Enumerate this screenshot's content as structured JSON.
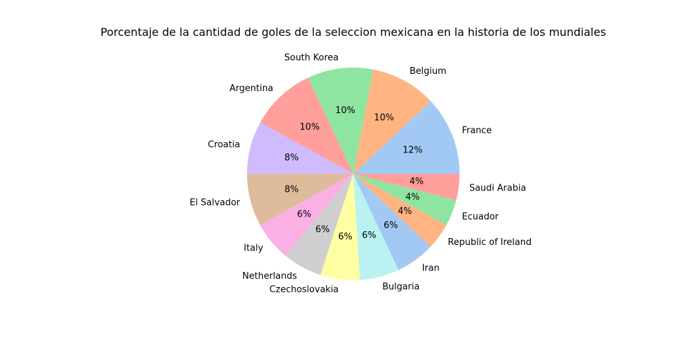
{
  "chart_data": {
    "type": "pie",
    "title": "Porcentaje de la cantidad de goles de la seleccion mexicana en la historia de los mundiales",
    "categories": [
      "France",
      "Belgium",
      "South Korea",
      "Argentina",
      "Croatia",
      "El Salvador",
      "Italy",
      "Netherlands",
      "Czechoslovakia",
      "Bulgaria",
      "Iran",
      "Republic of Ireland",
      "Ecuador",
      "Saudi Arabia"
    ],
    "values": [
      6,
      5,
      5,
      5,
      4,
      4,
      3,
      3,
      3,
      3,
      3,
      2,
      2,
      2
    ],
    "percent_labels": [
      "12%",
      "10%",
      "10%",
      "10%",
      "8%",
      "8%",
      "6%",
      "6%",
      "6%",
      "6%",
      "6%",
      "4%",
      "4%",
      "4%"
    ],
    "colors": [
      "#a1c9f4",
      "#ffb482",
      "#8de5a1",
      "#ff9f9b",
      "#d0bbff",
      "#debb9b",
      "#fab0e4",
      "#cfcfcf",
      "#fffea3",
      "#b9f2f0",
      "#a1c9f4",
      "#ffb482",
      "#8de5a1",
      "#ff9f9b"
    ],
    "start_angle_deg": 0,
    "direction": "counterclockwise",
    "legend": "none"
  }
}
